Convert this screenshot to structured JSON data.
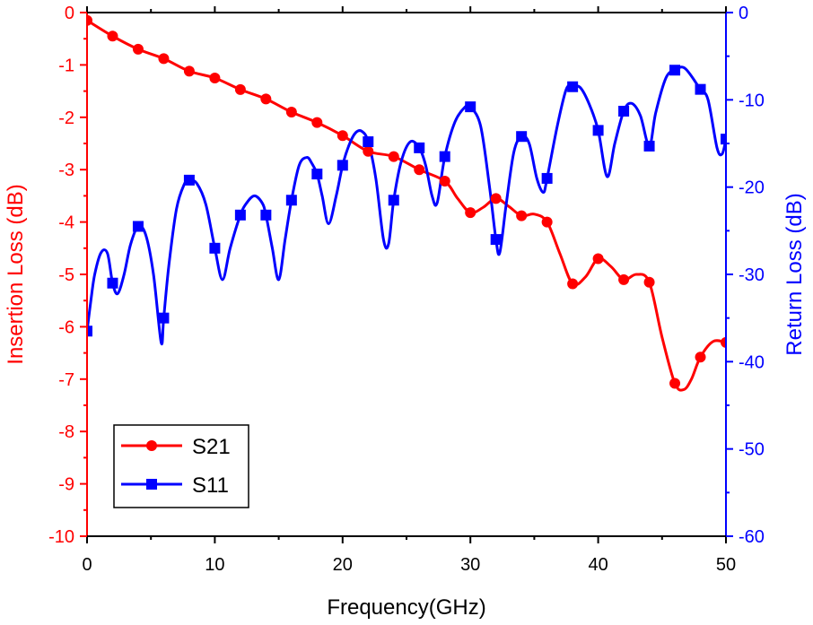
{
  "chart_data": {
    "type": "line",
    "title": "",
    "xlabel": "Frequency(GHz)",
    "ylabel_left": "Insertion Loss (dB)",
    "ylabel_right": "Return Loss (dB)",
    "xlim": [
      0,
      50
    ],
    "ylim_left": [
      -10,
      0
    ],
    "ylim_right": [
      -60,
      0
    ],
    "x_ticks": [
      "0",
      "10",
      "20",
      "30",
      "40",
      "50"
    ],
    "y_left_ticks": [
      "0",
      "-1",
      "-2",
      "-3",
      "-4",
      "-5",
      "-6",
      "-7",
      "-8",
      "-9",
      "-10"
    ],
    "y_right_ticks": [
      "0",
      "-10",
      "-20",
      "-30",
      "-40",
      "-50",
      "-60"
    ],
    "grid": false,
    "legend_position": "bottom-left",
    "colors": {
      "S21": "#ff0000",
      "S11": "#0000ff",
      "frame": "#000000"
    },
    "series": [
      {
        "name": "S21",
        "axis": "left",
        "marker": "circle",
        "x": [
          0,
          2,
          4,
          6,
          8,
          10,
          12,
          14,
          16,
          18,
          20,
          22,
          24,
          26,
          28,
          30,
          32,
          34,
          36,
          38,
          40,
          42,
          44,
          46,
          48,
          50
        ],
        "y": [
          -0.15,
          -0.45,
          -0.7,
          -0.88,
          -1.12,
          -1.25,
          -1.47,
          -1.65,
          -1.9,
          -2.1,
          -2.35,
          -2.65,
          -2.75,
          -3.0,
          -3.22,
          -3.82,
          -3.55,
          -3.88,
          -4.0,
          -5.18,
          -4.7,
          -5.1,
          -5.15,
          -7.08,
          -6.58,
          -6.3
        ],
        "curve": [
          [
            0,
            -0.15
          ],
          [
            2,
            -0.45
          ],
          [
            4,
            -0.7
          ],
          [
            6,
            -0.88
          ],
          [
            8,
            -1.12
          ],
          [
            10,
            -1.25
          ],
          [
            12,
            -1.47
          ],
          [
            14,
            -1.65
          ],
          [
            16,
            -1.9
          ],
          [
            18,
            -2.1
          ],
          [
            20,
            -2.35
          ],
          [
            22,
            -2.65
          ],
          [
            24,
            -2.75
          ],
          [
            26,
            -3.0
          ],
          [
            28,
            -3.22
          ],
          [
            29,
            -3.55
          ],
          [
            30,
            -3.82
          ],
          [
            31,
            -3.72
          ],
          [
            32,
            -3.55
          ],
          [
            33,
            -3.7
          ],
          [
            34,
            -3.88
          ],
          [
            35,
            -3.85
          ],
          [
            36,
            -4.0
          ],
          [
            37,
            -4.6
          ],
          [
            38,
            -5.18
          ],
          [
            39,
            -5.05
          ],
          [
            40,
            -4.7
          ],
          [
            41,
            -4.85
          ],
          [
            42,
            -5.1
          ],
          [
            43,
            -5.0
          ],
          [
            44,
            -5.15
          ],
          [
            45,
            -6.2
          ],
          [
            46,
            -7.08
          ],
          [
            46.7,
            -7.2
          ],
          [
            47.3,
            -7.0
          ],
          [
            48,
            -6.58
          ],
          [
            49,
            -6.28
          ],
          [
            50,
            -6.3
          ]
        ]
      },
      {
        "name": "S11",
        "axis": "right",
        "marker": "square",
        "x": [
          0,
          2,
          4,
          6,
          8,
          10,
          12,
          14,
          16,
          18,
          20,
          22,
          24,
          26,
          28,
          30,
          32,
          34,
          36,
          38,
          40,
          42,
          44,
          46,
          48,
          50
        ],
        "y": [
          -36.5,
          -31,
          -24.5,
          -35,
          -19.2,
          -27,
          -23.2,
          -23.2,
          -21.5,
          -18.5,
          -17.5,
          -14.8,
          -21.5,
          -15.5,
          -16.5,
          -10.8,
          -26,
          -14.2,
          -19,
          -8.5,
          -13.5,
          -11.3,
          -15.3,
          -6.6,
          -8.8,
          -14.5
        ],
        "curve": [
          [
            0,
            -36.5
          ],
          [
            0.3,
            -33
          ],
          [
            0.6,
            -30
          ],
          [
            1.1,
            -27.5
          ],
          [
            1.6,
            -27.6
          ],
          [
            2,
            -31
          ],
          [
            2.4,
            -32.2
          ],
          [
            2.9,
            -30
          ],
          [
            3.4,
            -26.6
          ],
          [
            4,
            -24.5
          ],
          [
            4.6,
            -25.5
          ],
          [
            5.2,
            -30
          ],
          [
            5.8,
            -37.8
          ],
          [
            6,
            -35
          ],
          [
            6.4,
            -29
          ],
          [
            7,
            -22.5
          ],
          [
            7.6,
            -19.7
          ],
          [
            8,
            -19.2
          ],
          [
            8.6,
            -19.6
          ],
          [
            9.3,
            -22
          ],
          [
            10,
            -27
          ],
          [
            10.6,
            -30.6
          ],
          [
            11.2,
            -27
          ],
          [
            12,
            -23.2
          ],
          [
            12.5,
            -21.8
          ],
          [
            13.1,
            -21
          ],
          [
            13.7,
            -21.8
          ],
          [
            14,
            -23.2
          ],
          [
            14.5,
            -27
          ],
          [
            15,
            -30.6
          ],
          [
            15.5,
            -26
          ],
          [
            16,
            -21.5
          ],
          [
            16.6,
            -17.5
          ],
          [
            17.2,
            -16.6
          ],
          [
            17.6,
            -17.3
          ],
          [
            18,
            -18.5
          ],
          [
            18.4,
            -21
          ],
          [
            18.9,
            -24.2
          ],
          [
            19.5,
            -21
          ],
          [
            20,
            -17.5
          ],
          [
            20.5,
            -15.2
          ],
          [
            21,
            -13.8
          ],
          [
            21.5,
            -13.6
          ],
          [
            22,
            -14.8
          ],
          [
            22.6,
            -19
          ],
          [
            23.2,
            -26
          ],
          [
            23.6,
            -26.5
          ],
          [
            24,
            -21.5
          ],
          [
            24.6,
            -17
          ],
          [
            25.3,
            -14.8
          ],
          [
            26,
            -15.5
          ],
          [
            26.5,
            -17.5
          ],
          [
            27,
            -21
          ],
          [
            27.4,
            -21.8
          ],
          [
            28,
            -16.5
          ],
          [
            28.8,
            -12.5
          ],
          [
            29.6,
            -10.8
          ],
          [
            30,
            -10.8
          ],
          [
            30.8,
            -13
          ],
          [
            31.5,
            -20
          ],
          [
            32,
            -26
          ],
          [
            32.3,
            -27.5
          ],
          [
            32.8,
            -22
          ],
          [
            33.4,
            -16
          ],
          [
            34,
            -14.2
          ],
          [
            34.6,
            -15
          ],
          [
            35.2,
            -19
          ],
          [
            35.7,
            -20.6
          ],
          [
            36,
            -19
          ],
          [
            36.8,
            -13
          ],
          [
            37.5,
            -8.8
          ],
          [
            38,
            -8.5
          ],
          [
            38.6,
            -8.6
          ],
          [
            39.3,
            -10.5
          ],
          [
            40,
            -13.5
          ],
          [
            40.7,
            -18.8
          ],
          [
            41.3,
            -15
          ],
          [
            42,
            -11.3
          ],
          [
            42.6,
            -10.4
          ],
          [
            43.3,
            -11.8
          ],
          [
            44,
            -15.3
          ],
          [
            44.5,
            -11.5
          ],
          [
            45.3,
            -7.5
          ],
          [
            46,
            -6.6
          ],
          [
            46.8,
            -6.4
          ],
          [
            48,
            -8.8
          ],
          [
            48.6,
            -10
          ],
          [
            49.3,
            -15.5
          ],
          [
            49.7,
            -16.2
          ],
          [
            50,
            -14.5
          ]
        ]
      }
    ]
  }
}
